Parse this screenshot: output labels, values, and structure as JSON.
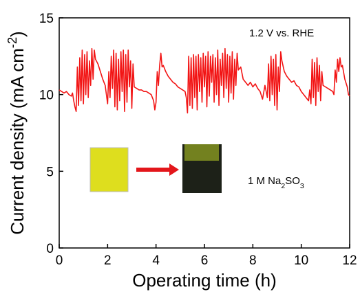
{
  "chart_data": {
    "type": "line",
    "xlabel": "Operating time (h)",
    "ylabel": [
      "Current density (mA cm",
      "-2",
      ")"
    ],
    "annotations": [
      "1.2 V vs. RHE",
      [
        "1 M Na",
        "2",
        "SO",
        "3"
      ]
    ],
    "xlim": [
      0,
      12
    ],
    "xticks": [
      0,
      2,
      4,
      6,
      8,
      10,
      12
    ],
    "ylim": [
      0,
      15
    ],
    "yticks": [
      0,
      5,
      10,
      15
    ],
    "x": [
      0,
      0.1,
      0.2,
      0.3,
      0.4,
      0.5,
      0.55,
      0.6,
      0.65,
      0.7,
      0.75,
      0.8,
      0.85,
      0.9,
      0.95,
      1.0,
      1.05,
      1.1,
      1.15,
      1.2,
      1.25,
      1.3,
      1.35,
      1.4,
      1.45,
      1.5,
      1.6,
      1.7,
      1.8,
      1.9,
      1.95,
      2.0,
      2.05,
      2.1,
      2.15,
      2.2,
      2.25,
      2.3,
      2.35,
      2.4,
      2.45,
      2.5,
      2.55,
      2.6,
      2.65,
      2.7,
      2.75,
      2.8,
      2.85,
      2.9,
      2.95,
      3.0,
      3.05,
      3.1,
      3.2,
      3.3,
      3.4,
      3.5,
      3.6,
      3.7,
      3.8,
      3.9,
      3.95,
      4.0,
      4.05,
      4.1,
      4.15,
      4.2,
      4.25,
      4.3,
      4.4,
      4.5,
      4.6,
      4.7,
      4.8,
      4.9,
      5.0,
      5.1,
      5.2,
      5.25,
      5.3,
      5.35,
      5.4,
      5.45,
      5.5,
      5.55,
      5.6,
      5.65,
      5.7,
      5.75,
      5.8,
      5.85,
      5.9,
      5.95,
      6.0,
      6.05,
      6.1,
      6.15,
      6.2,
      6.25,
      6.3,
      6.35,
      6.4,
      6.45,
      6.5,
      6.55,
      6.6,
      6.65,
      6.7,
      6.75,
      6.8,
      6.85,
      6.9,
      6.95,
      7.0,
      7.05,
      7.1,
      7.15,
      7.2,
      7.25,
      7.3,
      7.35,
      7.4,
      7.5,
      7.6,
      7.7,
      7.8,
      7.9,
      8.0,
      8.1,
      8.2,
      8.3,
      8.4,
      8.5,
      8.6,
      8.65,
      8.7,
      8.75,
      8.8,
      8.85,
      8.9,
      8.95,
      9.0,
      9.05,
      9.1,
      9.15,
      9.2,
      9.3,
      9.4,
      9.5,
      9.6,
      9.7,
      9.8,
      9.9,
      10.0,
      10.1,
      10.2,
      10.3,
      10.35,
      10.4,
      10.45,
      10.5,
      10.55,
      10.6,
      10.65,
      10.7,
      10.75,
      10.8,
      10.85,
      10.9,
      11.0,
      11.1,
      11.2,
      11.3,
      11.35,
      11.4,
      11.45,
      11.5,
      11.55,
      11.6,
      11.65,
      11.7,
      11.8,
      11.9,
      11.95,
      12.0
    ],
    "series": [
      {
        "color": "#f21515",
        "values": [
          10.3,
          10.2,
          10.1,
          10.2,
          10.0,
          9.9,
          10.1,
          9.6,
          9.2,
          8.9,
          11.8,
          9.3,
          12.4,
          9.6,
          12.9,
          9.4,
          12.6,
          10.0,
          12.8,
          9.8,
          12.2,
          10.6,
          13.0,
          11.0,
          12.9,
          12.3,
          12.0,
          11.5,
          11.0,
          10.6,
          10.0,
          9.4,
          11.5,
          9.8,
          12.5,
          10.4,
          12.9,
          9.2,
          12.7,
          9.0,
          12.3,
          9.6,
          12.8,
          10.2,
          12.9,
          8.9,
          12.6,
          9.5,
          12.9,
          10.5,
          12.2,
          9.1,
          12.0,
          10.5,
          10.4,
          10.3,
          10.3,
          10.2,
          10.2,
          10.1,
          10.0,
          9.6,
          9.0,
          9.5,
          11.5,
          10.6,
          11.9,
          12.7,
          11.8,
          11.9,
          11.5,
          11.2,
          11.0,
          10.8,
          10.7,
          10.5,
          10.4,
          10.3,
          10.2,
          9.8,
          8.8,
          12.5,
          9.3,
          12.4,
          9.1,
          12.6,
          9.8,
          12.5,
          9.0,
          12.6,
          10.2,
          12.4,
          9.5,
          12.7,
          10.5,
          12.5,
          9.2,
          12.8,
          9.9,
          12.5,
          10.8,
          12.6,
          9.5,
          12.4,
          10.0,
          12.9,
          9.3,
          12.3,
          10.6,
          12.7,
          9.8,
          13.0,
          10.4,
          12.6,
          9.5,
          12.5,
          10.1,
          12.8,
          9.7,
          12.3,
          10.6,
          12.7,
          11.6,
          11.8,
          11.0,
          10.8,
          10.6,
          10.8,
          10.5,
          10.7,
          10.4,
          10.2,
          9.7,
          10.6,
          9.8,
          12.0,
          9.6,
          12.5,
          10.0,
          12.3,
          9.3,
          12.6,
          9.0,
          11.8,
          10.2,
          12.8,
          12.2,
          11.5,
          11.2,
          11.0,
          10.8,
          10.9,
          10.6,
          10.5,
          10.2,
          10.0,
          9.8,
          9.6,
          10.3,
          9.4,
          12.3,
          9.8,
          12.1,
          9.3,
          12.4,
          10.2,
          11.9,
          9.6,
          11.5,
          10.6,
          10.5,
          10.4,
          10.3,
          10.2,
          10.0,
          11.6,
          10.8,
          12.3,
          11.5,
          12.4,
          11.8,
          11.9,
          11.0,
          10.5,
          10.0,
          9.9
        ]
      }
    ]
  }
}
